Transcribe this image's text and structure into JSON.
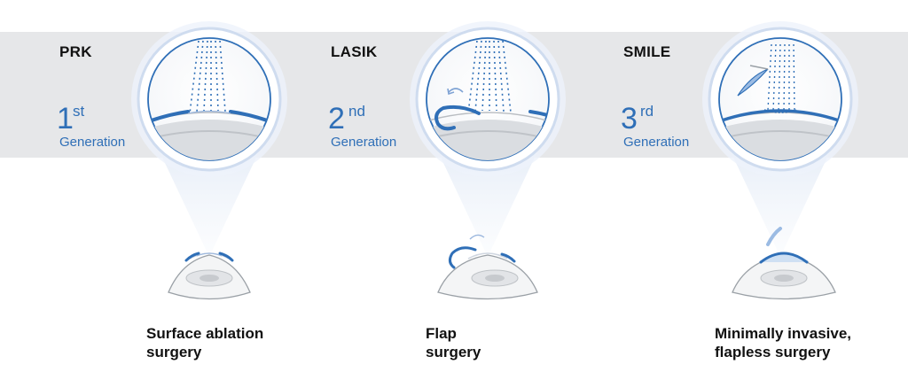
{
  "procedures": [
    {
      "name": "PRK",
      "generation_number": "1",
      "generation_suffix": "st",
      "generation_word": "Generation",
      "caption_line1": "Surface ablation",
      "caption_line2": "surgery"
    },
    {
      "name": "LASIK",
      "generation_number": "2",
      "generation_suffix": "nd",
      "generation_word": "Generation",
      "caption_line1": "Flap",
      "caption_line2": "surgery"
    },
    {
      "name": "SMILE",
      "generation_number": "3",
      "generation_suffix": "rd",
      "generation_word": "Generation",
      "caption_line1": "Minimally invasive,",
      "caption_line2": "flapless surgery"
    }
  ],
  "colors": {
    "accent_blue": "#2f6fb7",
    "band_gray": "#e6e7e9",
    "lens_ring": "#c9d8ee"
  }
}
